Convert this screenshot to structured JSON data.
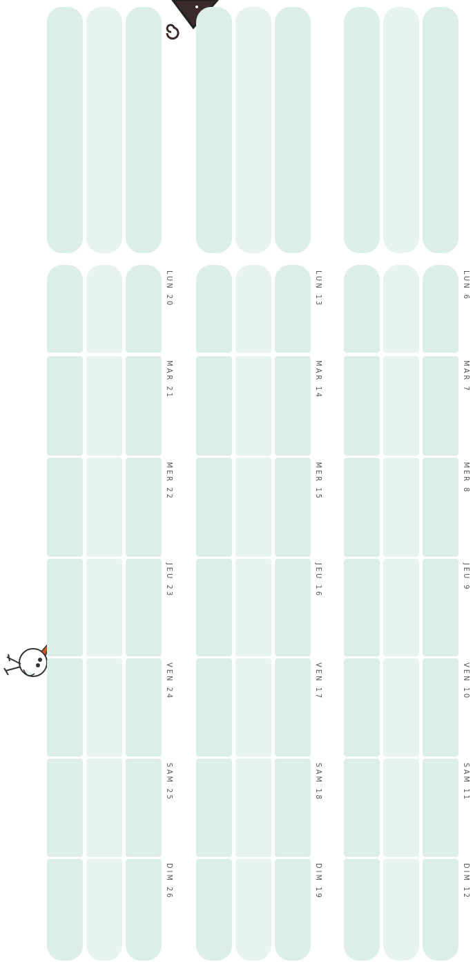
{
  "weeks": [
    {
      "days": [
        "LUN 6",
        "MAR 7",
        "MER 8",
        "JEU 9",
        "VEN 10",
        "SAM 11",
        "DIM 12"
      ]
    },
    {
      "days": [
        "LUN 13",
        "MAR 14",
        "MER 15",
        "JEU 16",
        "VEN 17",
        "SAM 18",
        "DIM 19"
      ]
    },
    {
      "days": [
        "LUN 20",
        "MAR 21",
        "MER 22",
        "JEU 23",
        "VEN 24",
        "SAM 25",
        "DIM 26"
      ]
    }
  ]
}
